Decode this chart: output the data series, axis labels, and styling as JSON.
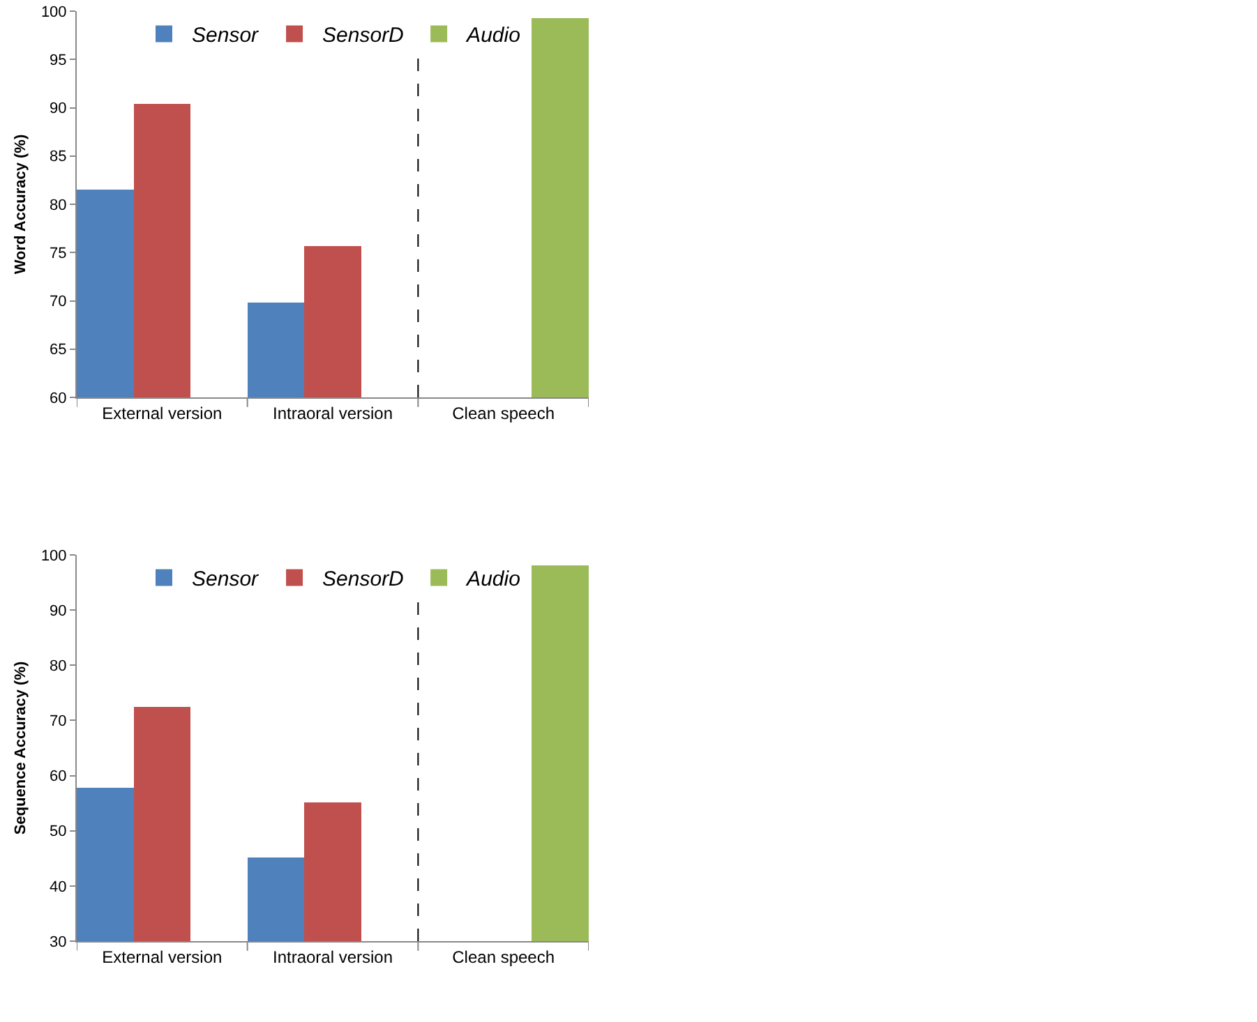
{
  "chart_data": [
    {
      "type": "bar",
      "ylabel": "Word Accuracy (%)",
      "categories": [
        "External version",
        "Intraoral version",
        "Clean speech"
      ],
      "series": [
        {
          "name": "Sensor",
          "color": "#4f81bd",
          "values": [
            81.5,
            69.8,
            null
          ]
        },
        {
          "name": "SensorD",
          "color": "#c0504d",
          "values": [
            90.4,
            75.7,
            null
          ]
        },
        {
          "name": "Audio",
          "color": "#9bbb59",
          "values": [
            null,
            null,
            99.3
          ]
        }
      ],
      "ylim": [
        60,
        100
      ],
      "yticks": [
        60,
        65,
        70,
        75,
        80,
        85,
        90,
        95,
        100
      ],
      "grid": false,
      "legend": "top"
    },
    {
      "type": "bar",
      "ylabel": "Sequence Accuracy (%)",
      "categories": [
        "External version",
        "Intraoral version",
        "Clean speech"
      ],
      "series": [
        {
          "name": "Sensor",
          "color": "#4f81bd",
          "values": [
            57.8,
            45.2,
            null
          ]
        },
        {
          "name": "SensorD",
          "color": "#c0504d",
          "values": [
            72.4,
            55.2,
            null
          ]
        },
        {
          "name": "Audio",
          "color": "#9bbb59",
          "values": [
            null,
            null,
            98.1
          ]
        }
      ],
      "ylim": [
        30,
        100
      ],
      "yticks": [
        30,
        40,
        50,
        60,
        70,
        80,
        90,
        100
      ],
      "grid": false,
      "legend": "top"
    }
  ]
}
